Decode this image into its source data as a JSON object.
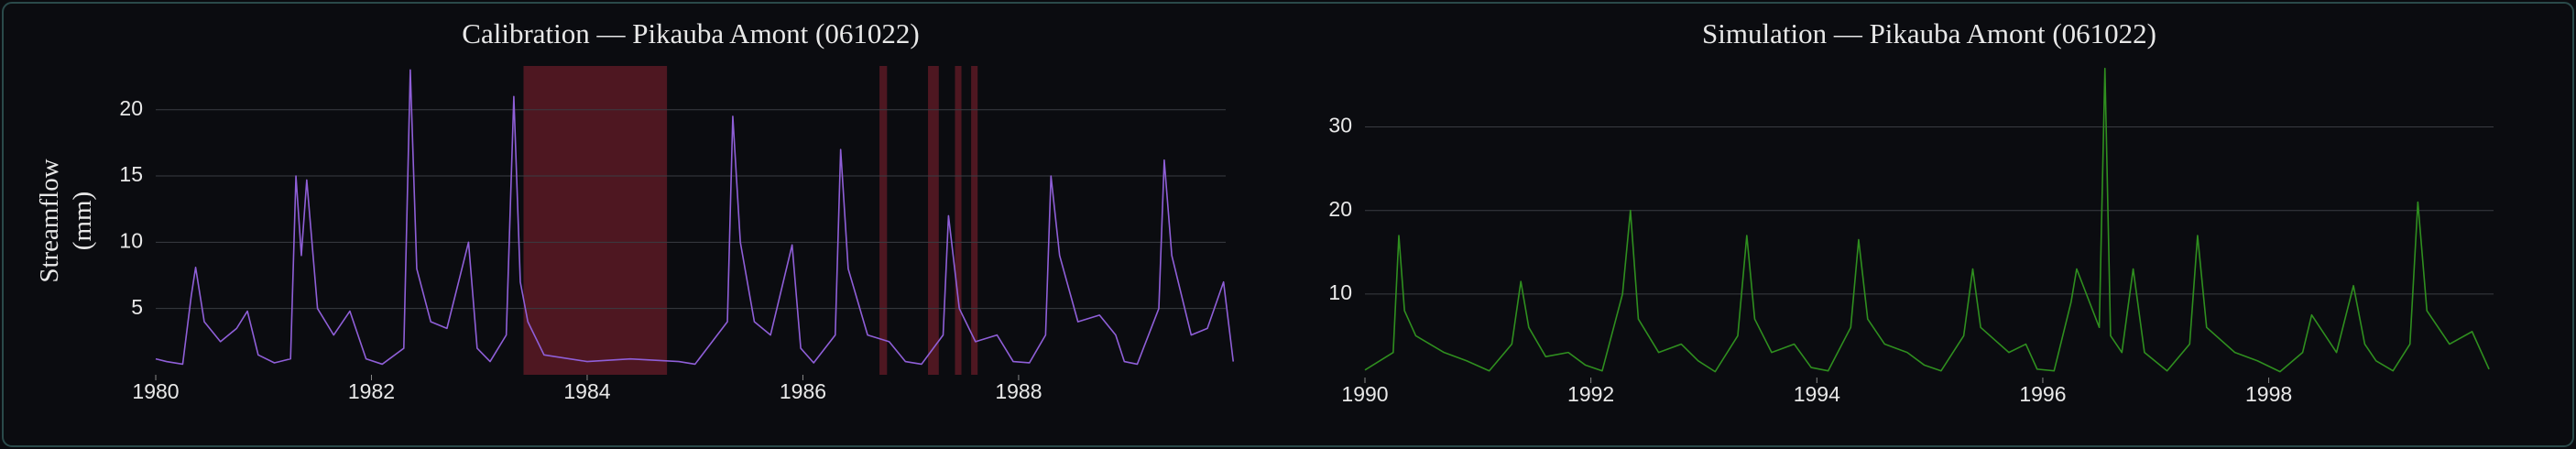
{
  "chart_data": [
    {
      "type": "line",
      "title": "Calibration — Pikauba Amont (061022)",
      "y_label": "Streamflow (mm)",
      "color": "#8f5fd8",
      "highlight_color": "#5a1a24",
      "highlight_periods": [
        [
          1983.41,
          1984.74
        ],
        [
          1986.71,
          1986.78
        ],
        [
          1987.16,
          1987.26
        ],
        [
          1987.41,
          1987.47
        ],
        [
          1987.56,
          1987.62
        ]
      ],
      "x": [
        1980.0,
        1980.1,
        1980.25,
        1980.33,
        1980.37,
        1980.45,
        1980.6,
        1980.75,
        1980.85,
        1980.95,
        1981.1,
        1981.25,
        1981.3,
        1981.35,
        1981.4,
        1981.5,
        1981.65,
        1981.8,
        1981.95,
        1982.1,
        1982.3,
        1982.36,
        1982.42,
        1982.55,
        1982.7,
        1982.9,
        1982.98,
        1983.1,
        1983.25,
        1983.32,
        1983.38,
        1983.45,
        1983.6,
        1984.0,
        1984.4,
        1984.85,
        1985.0,
        1985.3,
        1985.35,
        1985.42,
        1985.55,
        1985.7,
        1985.9,
        1985.98,
        1986.1,
        1986.3,
        1986.35,
        1986.42,
        1986.6,
        1986.8,
        1986.95,
        1987.1,
        1987.3,
        1987.35,
        1987.45,
        1987.6,
        1987.8,
        1987.95,
        1988.1,
        1988.25,
        1988.3,
        1988.38,
        1988.55,
        1988.75,
        1988.9,
        1988.98,
        1989.1,
        1989.3,
        1989.35,
        1989.42,
        1989.6,
        1989.75,
        1989.9,
        1989.99
      ],
      "values": [
        1.2,
        1.0,
        0.8,
        6,
        8.1,
        4,
        2.5,
        3.5,
        4.8,
        1.5,
        0.9,
        1.2,
        15,
        9,
        14.7,
        5,
        3,
        4.8,
        1.2,
        0.8,
        2,
        23,
        8,
        4,
        3.5,
        10,
        2,
        1,
        3,
        21,
        7,
        4,
        1.5,
        1,
        1.2,
        1,
        0.8,
        4,
        19.5,
        10,
        4,
        3,
        9.8,
        2,
        0.9,
        3,
        17,
        8,
        3,
        2.5,
        1,
        0.8,
        3,
        12,
        5,
        2.5,
        3,
        1,
        0.9,
        3,
        15,
        9,
        4,
        4.5,
        3,
        1,
        0.8,
        5,
        16.2,
        9,
        3,
        3.5,
        7,
        1
      ],
      "xlim": [
        1980,
        1989.92
      ],
      "xticks": [
        1980,
        1982,
        1984,
        1986,
        1988
      ],
      "ylim": [
        0,
        23.3
      ],
      "yticks": [
        5,
        10,
        15,
        20
      ],
      "grid": true
    },
    {
      "type": "line",
      "title": "Simulation — Pikauba Amont (061022)",
      "color": "#2f8f1f",
      "x": [
        1990.0,
        1990.25,
        1990.3,
        1990.35,
        1990.45,
        1990.7,
        1990.9,
        1991.1,
        1991.3,
        1991.38,
        1991.45,
        1991.6,
        1991.8,
        1991.95,
        1992.1,
        1992.28,
        1992.35,
        1992.42,
        1992.6,
        1992.8,
        1992.95,
        1993.1,
        1993.3,
        1993.38,
        1993.45,
        1993.6,
        1993.8,
        1993.95,
        1994.1,
        1994.3,
        1994.37,
        1994.45,
        1994.6,
        1994.8,
        1994.95,
        1995.1,
        1995.3,
        1995.38,
        1995.45,
        1995.7,
        1995.85,
        1995.95,
        1996.1,
        1996.25,
        1996.3,
        1996.5,
        1996.55,
        1996.6,
        1996.7,
        1996.8,
        1996.9,
        1997.1,
        1997.3,
        1997.37,
        1997.45,
        1997.7,
        1997.9,
        1998.1,
        1998.3,
        1998.38,
        1998.6,
        1998.75,
        1998.85,
        1998.95,
        1999.1,
        1999.25,
        1999.32,
        1999.4,
        1999.6,
        1999.8,
        1999.95
      ],
      "values": [
        0.9,
        3,
        17,
        8,
        5,
        3,
        2,
        0.8,
        4,
        11.5,
        6,
        2.5,
        3,
        1.5,
        0.8,
        10,
        20,
        7,
        3,
        4,
        2,
        0.7,
        5,
        17,
        7,
        3,
        4,
        1.2,
        0.8,
        6,
        16.5,
        7,
        4,
        3,
        1.5,
        0.8,
        5,
        13,
        6,
        3,
        4,
        1,
        0.8,
        9,
        13,
        6,
        37,
        5,
        3,
        13,
        3,
        0.8,
        4,
        17,
        6,
        3,
        2,
        0.7,
        3,
        7.5,
        3,
        11,
        4,
        2,
        0.8,
        4,
        21,
        8,
        4,
        5.5,
        1
      ],
      "xlim": [
        1990,
        1999.99
      ],
      "xticks": [
        1990,
        1992,
        1994,
        1996,
        1998
      ],
      "ylim": [
        0,
        37.3
      ],
      "yticks": [
        10,
        20,
        30
      ],
      "grid": true
    }
  ]
}
